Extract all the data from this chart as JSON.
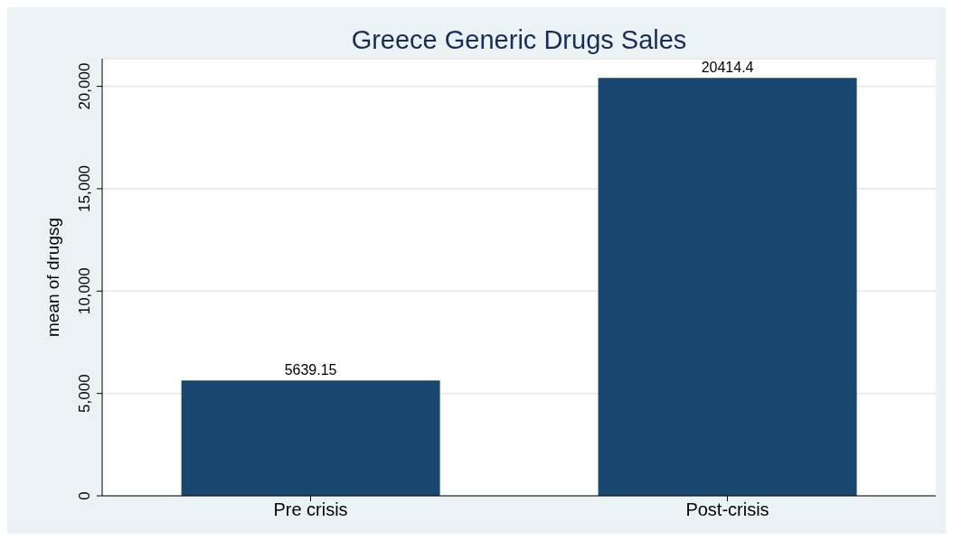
{
  "chart_data": {
    "type": "bar",
    "title": "Greece Generic Drugs Sales",
    "ylabel": "mean of drugsg",
    "categories": [
      "Pre crisis",
      "Post-crisis"
    ],
    "values": [
      5639.15,
      20414.4
    ],
    "color": "#1a476f",
    "data_labels": true,
    "ylim": [
      0,
      21350
    ],
    "yticks": [
      0,
      {
        "value": 5000,
        "label": "5,000"
      },
      {
        "value": 10000,
        "label": "10,000"
      },
      {
        "value": 15000,
        "label": "15,000"
      },
      {
        "value": 20000,
        "label": "20,000"
      }
    ],
    "grid": "y",
    "legend": false
  }
}
